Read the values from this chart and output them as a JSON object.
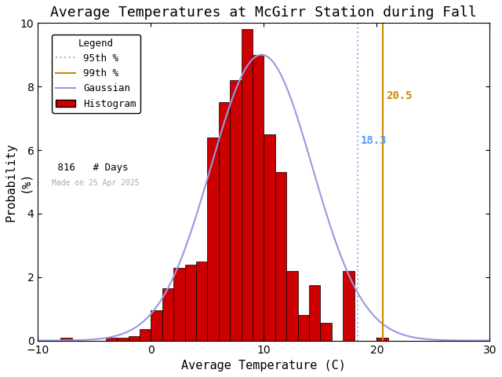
{
  "title": "Average Temperatures at McGirr Station during Fall",
  "xlabel": "Average Temperature (C)",
  "ylabel": "Probability\n(%)",
  "xlim": [
    -10,
    30
  ],
  "ylim": [
    0,
    10
  ],
  "xticks": [
    -10,
    0,
    10,
    20,
    30
  ],
  "yticks": [
    0,
    2,
    4,
    6,
    8,
    10
  ],
  "bin_edges": [
    -8,
    -7,
    -6,
    -5,
    -4,
    -3,
    -2,
    -1,
    0,
    1,
    2,
    3,
    4,
    5,
    6,
    7,
    8,
    9,
    10,
    11,
    12,
    13,
    14,
    15,
    16,
    17,
    18,
    19,
    20,
    21,
    22
  ],
  "bin_heights": [
    0.08,
    0.0,
    0.0,
    0.0,
    0.1,
    0.1,
    0.15,
    0.35,
    0.95,
    1.65,
    2.3,
    2.4,
    2.5,
    6.4,
    7.5,
    8.2,
    9.8,
    9.0,
    6.5,
    5.3,
    2.2,
    0.8,
    1.75,
    0.55,
    0.0,
    2.2,
    0.0,
    0.0,
    0.1,
    0.0,
    0.0
  ],
  "bar_color": "#cc0000",
  "bar_edgecolor": "#000000",
  "gaussian_color": "#9999dd",
  "gaussian_mean": 9.8,
  "gaussian_std": 4.5,
  "gaussian_amplitude": 9.0,
  "pct95_value": 18.3,
  "pct95_color": "#aaaaff",
  "pct95_label_color": "#5599ff",
  "pct99_value": 20.5,
  "pct99_color": "#cc8800",
  "n_days": 816,
  "made_on": "Made on 25 Apr 2025",
  "bg_color": "#ffffff",
  "title_fontsize": 13,
  "axis_fontsize": 11,
  "legend_fontsize": 9,
  "tick_fontsize": 10
}
